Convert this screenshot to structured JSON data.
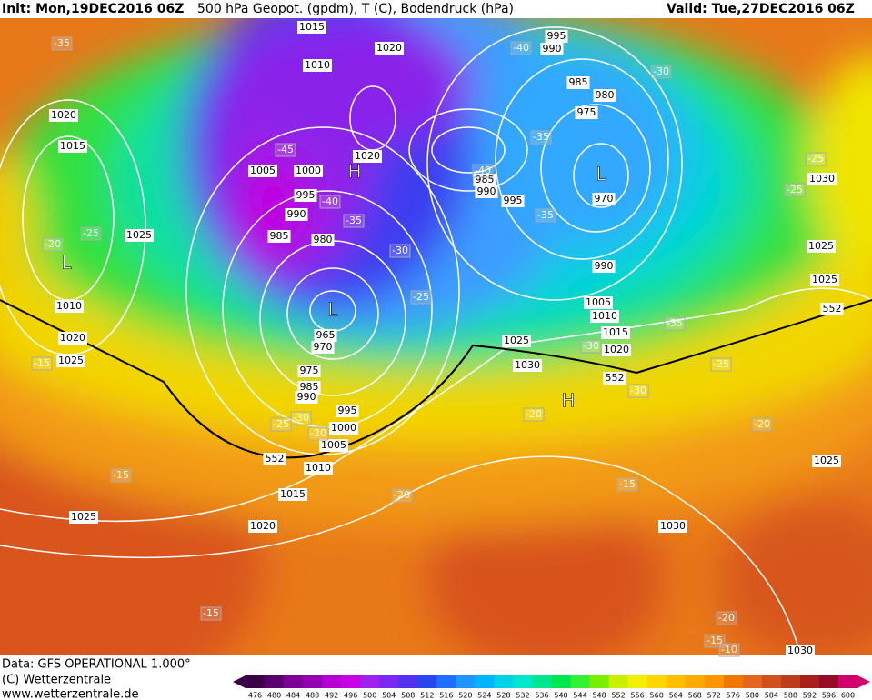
{
  "header": {
    "init": "Init: Mon,19DEC2016 06Z",
    "title": "500 hPa Geopot. (gpdm), T (C), Bodendruck (hPa)",
    "valid": "Valid: Tue,27DEC2016 06Z"
  },
  "footer": {
    "data": "Data: GFS OPERATIONAL 1.000°",
    "copyright": "(C) Wetterzentrale",
    "url": "www.wetterzentrale.de"
  },
  "colorbar": {
    "values": [
      476,
      480,
      484,
      488,
      492,
      496,
      500,
      504,
      508,
      512,
      516,
      520,
      524,
      528,
      532,
      536,
      540,
      544,
      548,
      552,
      556,
      560,
      564,
      568,
      572,
      576,
      580,
      584,
      588,
      592,
      596,
      600
    ],
    "colors": [
      "#3c0046",
      "#5a006e",
      "#7a0096",
      "#9600b4",
      "#b400d2",
      "#c800e6",
      "#a020f0",
      "#7828f0",
      "#5032f0",
      "#2846f0",
      "#1e6eff",
      "#1e96ff",
      "#00b4ff",
      "#00d2e6",
      "#00e6c8",
      "#00e68c",
      "#00e650",
      "#32f032",
      "#78f000",
      "#c8f000",
      "#f0f000",
      "#ffd700",
      "#ffbe00",
      "#ffaa00",
      "#ff9600",
      "#f07800",
      "#e6641e",
      "#d2501e",
      "#be3c1e",
      "#aa1e1e",
      "#960a28",
      "#d2006e"
    ]
  },
  "map": {
    "isobar_labels": [
      1015,
      1020,
      1010,
      995,
      990,
      985,
      980,
      975,
      1020,
      1015,
      1020,
      1005,
      1000,
      985,
      990,
      995,
      995,
      970,
      990,
      1025,
      985,
      980,
      1030,
      1025,
      990,
      1025,
      1010,
      1005,
      1010,
      965,
      970,
      1015,
      1020,
      1025,
      1025,
      1020,
      975,
      1030,
      985,
      990,
      995,
      1000,
      1005,
      1010,
      1025,
      1015,
      1025,
      1020,
      1030,
      1030
    ],
    "temperature_labels": [
      -35,
      -40,
      -30,
      -35,
      -45,
      -40,
      -40,
      -35,
      -35,
      -25,
      -25,
      -20,
      -25,
      -30,
      -25,
      -35,
      -30,
      -15,
      -25,
      -30,
      -20,
      -25,
      -30,
      -20,
      -20,
      -15,
      -15,
      -20,
      -15,
      -20,
      -15,
      -10
    ],
    "contour_labels": [
      552,
      552,
      552
    ],
    "highs": [
      "H",
      "H"
    ],
    "lows": [
      "L",
      "L",
      "L"
    ]
  }
}
